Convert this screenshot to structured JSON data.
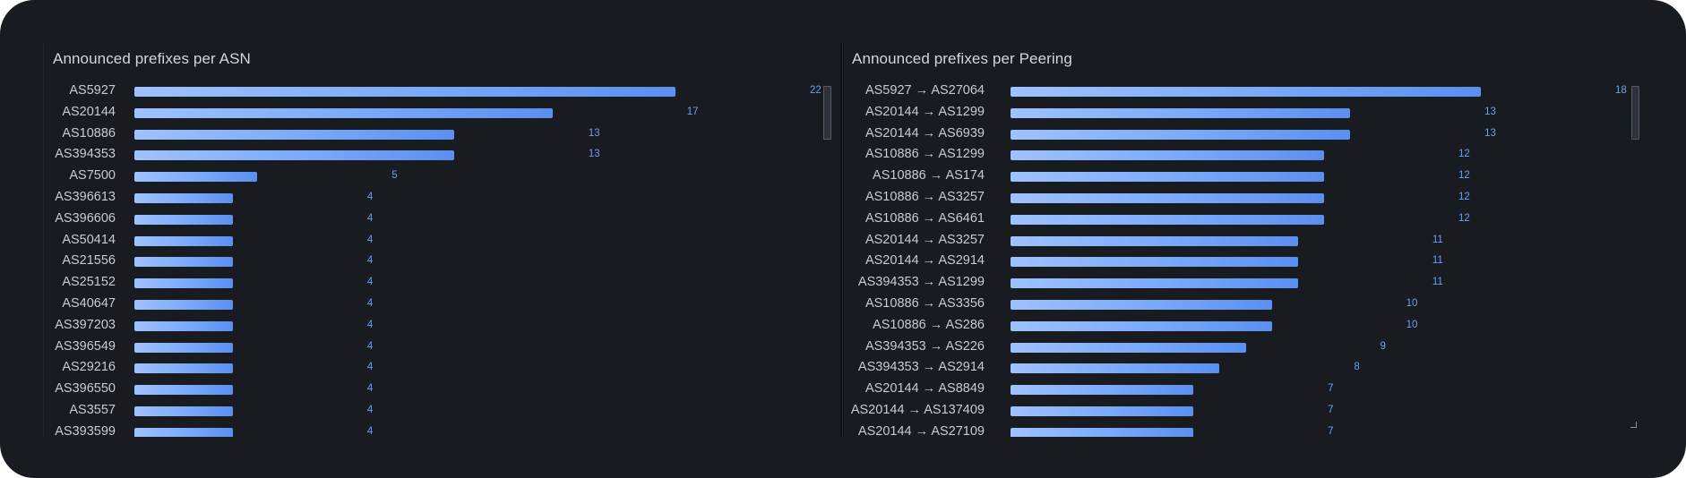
{
  "chart_data": [
    {
      "type": "bar",
      "orientation": "horizontal",
      "title": "Announced prefixes per ASN",
      "categories": [
        "AS5927",
        "AS20144",
        "AS10886",
        "AS394353",
        "AS7500",
        "AS396613",
        "AS396606",
        "AS50414",
        "AS21556",
        "AS25152",
        "AS40647",
        "AS397203",
        "AS396549",
        "AS29216",
        "AS396550",
        "AS3557",
        "AS393599"
      ],
      "values": [
        22,
        17,
        13,
        13,
        5,
        4,
        4,
        4,
        4,
        4,
        4,
        4,
        4,
        4,
        4,
        4,
        4
      ],
      "xlim": [
        0,
        22
      ],
      "grid": false,
      "legend": "none",
      "colors": {
        "bar_start": "#9ec2ff",
        "bar_end": "#5b8ff0",
        "value_text": "#6e9ef4"
      }
    },
    {
      "type": "bar",
      "orientation": "horizontal",
      "title": "Announced prefixes per Peering",
      "categories": [
        "AS5927 → AS27064",
        "AS20144 → AS1299",
        "AS20144 → AS6939",
        "AS10886 → AS1299",
        "AS10886 → AS174",
        "AS10886 → AS3257",
        "AS10886 → AS6461",
        "AS20144 → AS3257",
        "AS20144 → AS2914",
        "AS394353 → AS1299",
        "AS10886 → AS3356",
        "AS10886 → AS286",
        "AS394353 → AS226",
        "AS394353 → AS2914",
        "AS20144 → AS8849",
        "AS20144 → AS137409",
        "AS20144 → AS27109"
      ],
      "values": [
        18,
        13,
        13,
        12,
        12,
        12,
        12,
        11,
        11,
        11,
        10,
        10,
        9,
        8,
        7,
        7,
        7
      ],
      "xlim": [
        0,
        18
      ],
      "grid": false,
      "legend": "none",
      "colors": {
        "bar_start": "#9ec2ff",
        "bar_end": "#5b8ff0",
        "value_text": "#6e9ef4"
      }
    }
  ]
}
